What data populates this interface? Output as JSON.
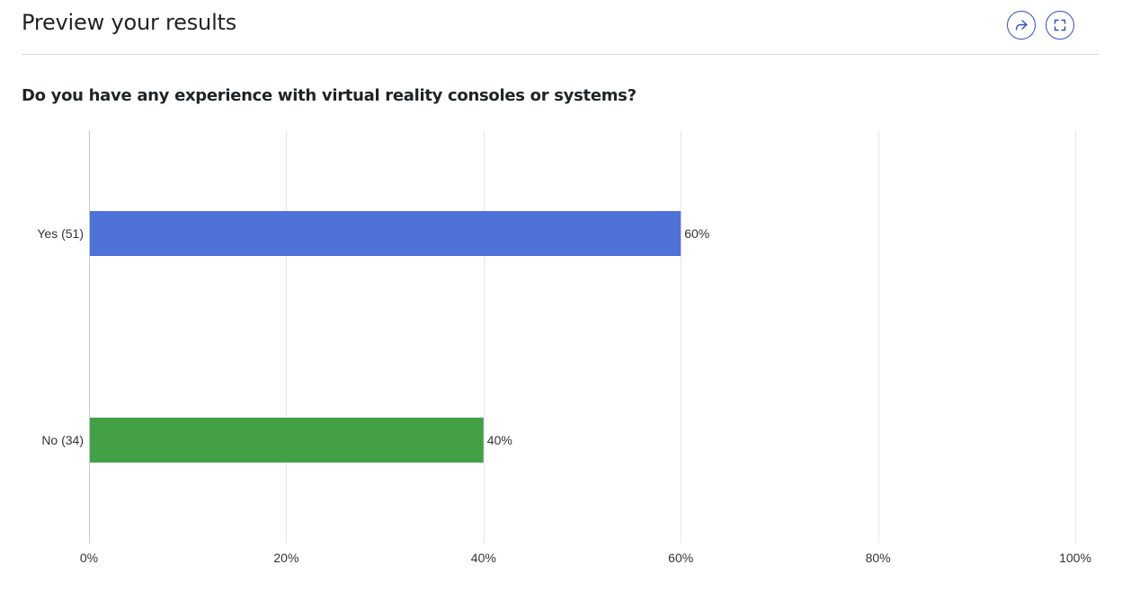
{
  "header": {
    "title": "Preview your results",
    "share_icon": "share-icon",
    "expand_icon": "fullscreen-icon",
    "accent_color": "#2f4fbf"
  },
  "question": {
    "text": "Do you have any experience with virtual reality consoles or systems?"
  },
  "chart_data": {
    "type": "bar",
    "orientation": "horizontal",
    "categories": [
      "Yes (51)",
      "No (34)"
    ],
    "values": [
      60,
      40
    ],
    "value_labels": [
      "60%",
      "40%"
    ],
    "colors": [
      "#4f72d9",
      "#43a047"
    ],
    "xlim": [
      0,
      100
    ],
    "x_ticks": [
      0,
      20,
      40,
      60,
      80,
      100
    ],
    "x_tick_labels": [
      "0%",
      "20%",
      "40%",
      "60%",
      "80%",
      "100%"
    ],
    "grid": true,
    "title": "",
    "xlabel": "",
    "ylabel": ""
  }
}
